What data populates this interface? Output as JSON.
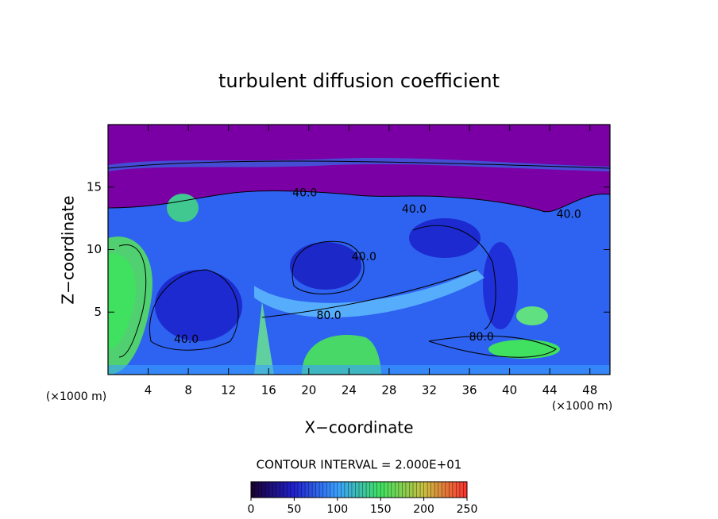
{
  "chart_data": {
    "type": "contour",
    "title": "turbulent diffusion coefficient",
    "x_label": "X−coordinate",
    "y_label": "Z−coordinate",
    "x_unit_labels": [
      "(×1000 m)",
      "(×1000 m)"
    ],
    "contour_interval_label": "CONTOUR INTERVAL = 2.000E+01",
    "xlim": [
      0,
      50
    ],
    "xticks": [
      4,
      8,
      12,
      16,
      20,
      24,
      28,
      32,
      36,
      40,
      44,
      48
    ],
    "ylim": [
      0,
      20
    ],
    "yticks": [
      5,
      10,
      15
    ],
    "clim": [
      0,
      250
    ],
    "cticks": [
      0,
      50,
      100,
      150,
      200,
      250
    ],
    "colormap": [
      "#1a0030",
      "#2020d0",
      "#3aa0ff",
      "#40e060",
      "#c8c040",
      "#ff3030"
    ],
    "contour_labels": [
      {
        "label": "40.0",
        "x": 19.6,
        "y": 14.5
      },
      {
        "label": "40.0",
        "x": 30.5,
        "y": 13.2
      },
      {
        "label": "40.0",
        "x": 45.9,
        "y": 12.8
      },
      {
        "label": "40.0",
        "x": 25.5,
        "y": 9.4
      },
      {
        "label": "80.0",
        "x": 22.0,
        "y": 4.7
      },
      {
        "label": "80.0",
        "x": 37.2,
        "y": 3.0
      },
      {
        "label": "40.0",
        "x": 7.8,
        "y": 2.8
      }
    ]
  }
}
